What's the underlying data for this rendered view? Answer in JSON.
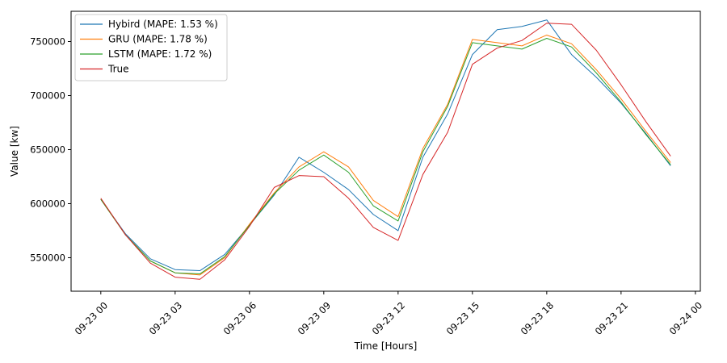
{
  "chart_data": {
    "type": "line",
    "xlabel": "Time [Hours]",
    "ylabel": "Value [kw]",
    "x_hours": [
      0,
      1,
      2,
      3,
      4,
      5,
      6,
      7,
      8,
      9,
      10,
      11,
      12,
      13,
      14,
      15,
      16,
      17,
      18,
      19,
      20,
      21,
      22,
      23
    ],
    "xlim_hours": [
      -1.2,
      24.2
    ],
    "ylim": [
      519000,
      778000
    ],
    "x_ticks": [
      {
        "hour": 0,
        "label": "09-23 00"
      },
      {
        "hour": 3,
        "label": "09-23 03"
      },
      {
        "hour": 6,
        "label": "09-23 06"
      },
      {
        "hour": 9,
        "label": "09-23 09"
      },
      {
        "hour": 12,
        "label": "09-23 12"
      },
      {
        "hour": 15,
        "label": "09-23 15"
      },
      {
        "hour": 18,
        "label": "09-23 18"
      },
      {
        "hour": 21,
        "label": "09-23 21"
      },
      {
        "hour": 24,
        "label": "09-24 00"
      }
    ],
    "y_ticks": [
      {
        "value": 550000,
        "label": "550000"
      },
      {
        "value": 600000,
        "label": "600000"
      },
      {
        "value": 650000,
        "label": "650000"
      },
      {
        "value": 700000,
        "label": "700000"
      },
      {
        "value": 750000,
        "label": "750000"
      }
    ],
    "legend_position": "top-left",
    "grid": false,
    "series": [
      {
        "name": "Hybird (MAPE: 1.53 %)",
        "color": "#1f77b4",
        "values": [
          604000,
          572000,
          549000,
          539000,
          538000,
          553000,
          580000,
          608000,
          643000,
          629000,
          613000,
          590000,
          575000,
          643000,
          683000,
          738000,
          761000,
          764000,
          770000,
          738000,
          717000,
          693000,
          665000,
          635000
        ]
      },
      {
        "name": "GRU (MAPE: 1.78 %)",
        "color": "#ff7f0e",
        "values": [
          604000,
          571000,
          547000,
          536000,
          534000,
          550000,
          581000,
          610000,
          634000,
          648000,
          634000,
          603000,
          588000,
          651000,
          692000,
          752000,
          749000,
          746000,
          756000,
          748000,
          724000,
          697000,
          667000,
          638000
        ]
      },
      {
        "name": "LSTM (MAPE: 1.72 %)",
        "color": "#2ca02c",
        "values": [
          604000,
          571000,
          547000,
          536000,
          535000,
          551000,
          580000,
          609000,
          631000,
          645000,
          629000,
          598000,
          584000,
          648000,
          690000,
          749000,
          746000,
          743000,
          753000,
          745000,
          721000,
          694000,
          664000,
          636000
        ]
      },
      {
        "name": "True",
        "color": "#d62728",
        "values": [
          605000,
          571000,
          545000,
          532000,
          530000,
          548000,
          579000,
          615000,
          626000,
          625000,
          605000,
          578000,
          566000,
          627000,
          666000,
          729000,
          744000,
          751000,
          767000,
          766000,
          742000,
          710000,
          676000,
          644000
        ]
      }
    ]
  }
}
